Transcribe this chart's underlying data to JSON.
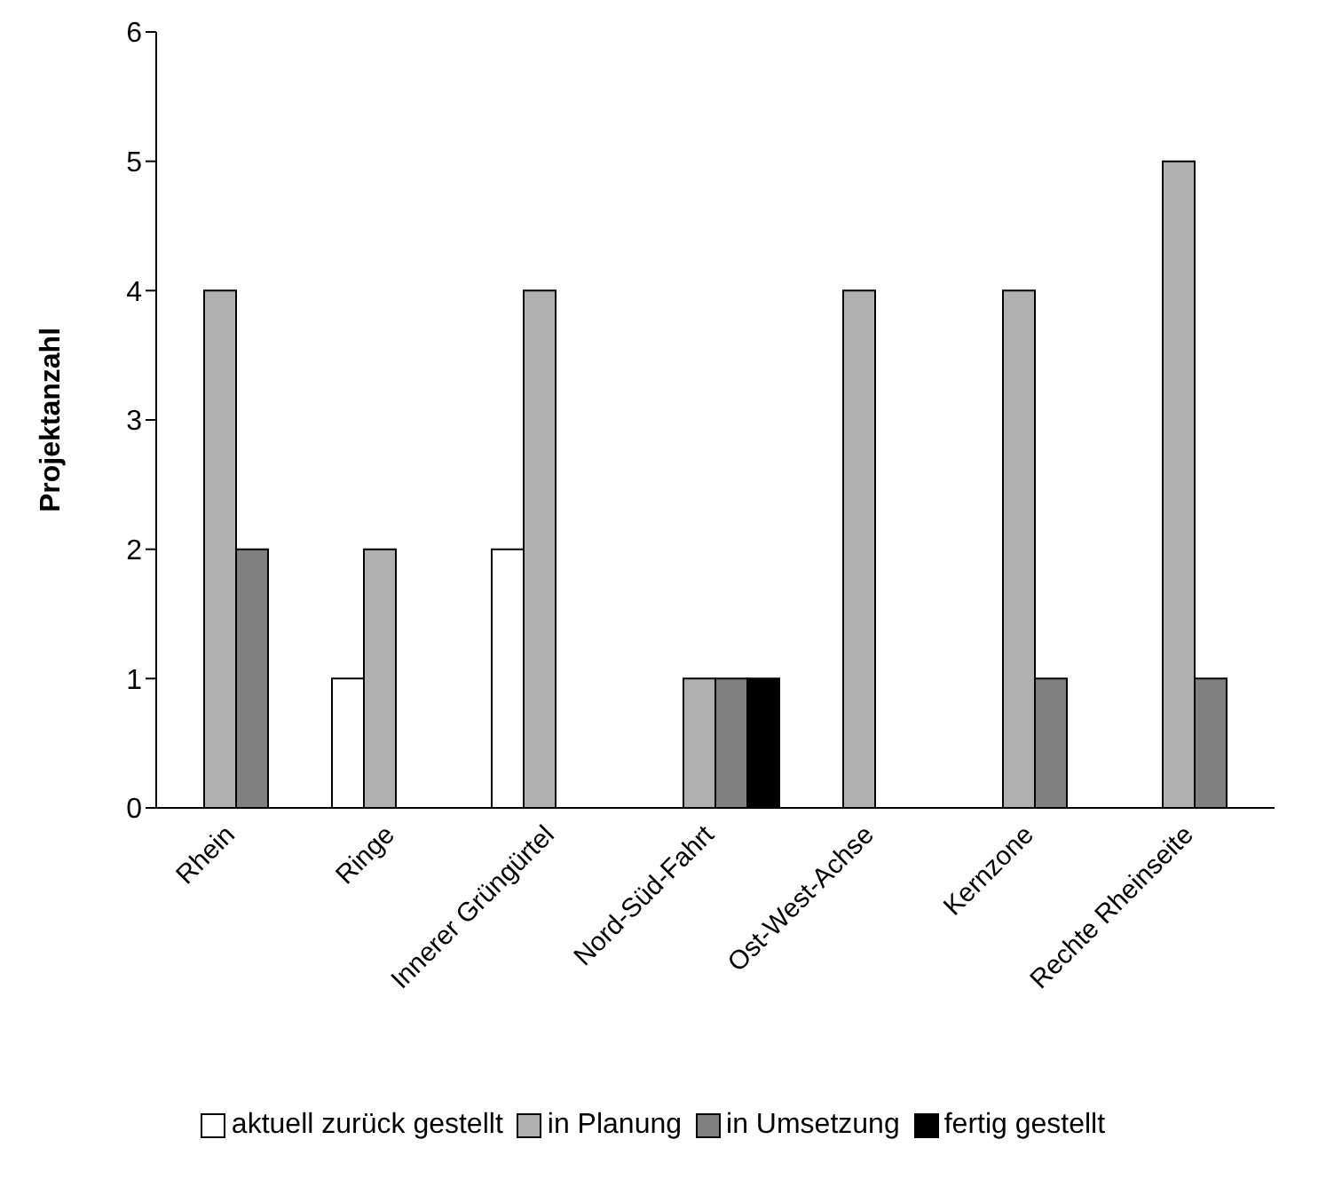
{
  "chart_data": {
    "type": "bar",
    "ylabel": "Projektanzahl",
    "categories": [
      "Rhein",
      "Ringe",
      "Innerer Grüngürtel",
      "Nord-Süd-Fahrt",
      "Ost-West-Achse",
      "Kernzone",
      "Rechte Rheinseite"
    ],
    "series": [
      {
        "name": "aktuell zurück gestellt",
        "color": "#ffffff",
        "values": [
          0,
          1,
          2,
          0,
          0,
          0,
          0
        ]
      },
      {
        "name": "in Planung",
        "color": "#b0b0b0",
        "values": [
          4,
          2,
          4,
          1,
          4,
          4,
          5
        ]
      },
      {
        "name": "in Umsetzung",
        "color": "#808080",
        "values": [
          2,
          0,
          0,
          1,
          0,
          1,
          1
        ]
      },
      {
        "name": "fertig gestellt",
        "color": "#000000",
        "values": [
          0,
          0,
          0,
          1,
          0,
          0,
          0
        ]
      }
    ],
    "ylim": [
      0,
      6
    ],
    "yticks": [
      0,
      1,
      2,
      3,
      4,
      5,
      6
    ],
    "grid": false,
    "legend": "bottom"
  }
}
